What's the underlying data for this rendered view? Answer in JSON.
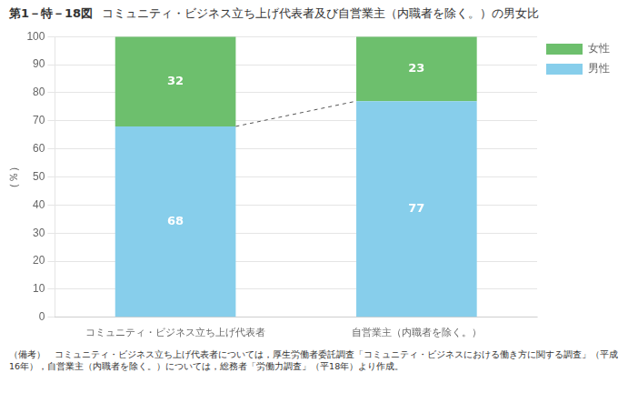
{
  "chart_data": {
    "type": "bar",
    "title": "コミュニティ・ビジネス立ち上げ代表者及び自営業主（内職者を除く。）の男女比",
    "annotations": [
      "第1－特－18図",
      "（備考）　コミュニティ・ビジネス立ち上げ代表者については，厚生労働者委託調査「コミュニティ・ビジネスにおける働き方に関する調査」（平成16年），自営業主（内職者を除く。）については，総務者「労働力調査」（平18年）より作成。"
    ],
    "ylabel": "（％）",
    "categories": [
      "コミュニティ・ビジネス立ち上げ代表者",
      "自営業主（内職者を除く。）"
    ],
    "series": [
      {
        "name": "男性",
        "color": "#87CEEB",
        "values": [
          68,
          77
        ]
      },
      {
        "name": "女性",
        "color": "#6DBF6D",
        "values": [
          32,
          23
        ]
      }
    ],
    "stacked": true,
    "data_labels": true,
    "ylim": [
      0,
      100
    ],
    "yticks": [
      0,
      10,
      20,
      30,
      40,
      50,
      60,
      70,
      80,
      90,
      100
    ],
    "grid": true,
    "legend": "right"
  }
}
